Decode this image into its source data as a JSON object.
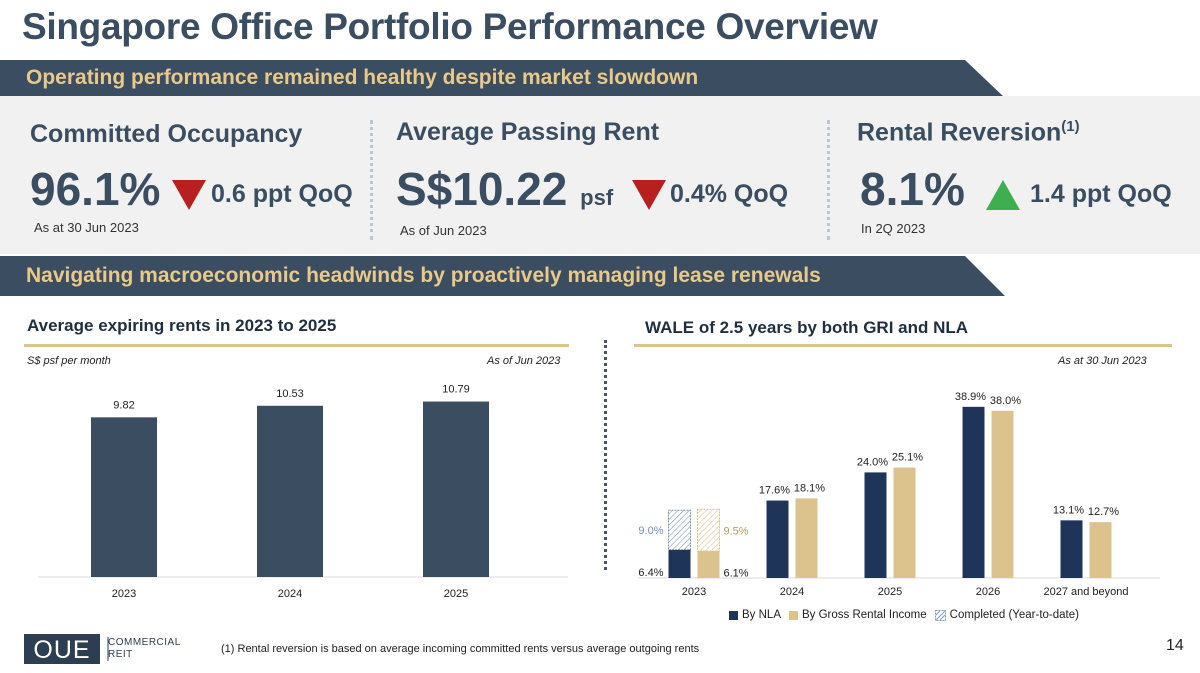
{
  "page": {
    "title": "Singapore Office Portfolio Performance Overview",
    "page_number": "14"
  },
  "banners": {
    "top": "Operating performance remained healthy despite market slowdown",
    "middle": "Navigating macroeconomic headwinds by proactively managing lease renewals"
  },
  "kpis": [
    {
      "label": "Committed Occupancy",
      "sup": "",
      "value": "96.1%",
      "unit": "",
      "change": "0.6 ppt QoQ",
      "direction": "down",
      "note": "As at 30 Jun 2023"
    },
    {
      "label": "Average Passing Rent",
      "sup": "",
      "value": "S$10.22",
      "unit": "psf",
      "change": "0.4% QoQ",
      "direction": "down",
      "note": "As of Jun 2023"
    },
    {
      "label": "Rental Reversion",
      "sup": "(1)",
      "value": "8.1%",
      "unit": "",
      "change": "1.4 ppt QoQ",
      "direction": "up",
      "note": "In 2Q 2023"
    }
  ],
  "colors": {
    "dark": "#3a4d61",
    "navy": "#1f3459",
    "gold": "#dcc38e",
    "down": "#b81f1f",
    "up": "#3fae4f",
    "banner_text": "#e8c98a"
  },
  "chart_data": [
    {
      "type": "bar",
      "title": "Average expiring rents in 2023 to 2025",
      "unit_label": "S$ psf per month",
      "as_of": "As of Jun 2023",
      "categories": [
        "2023",
        "2024",
        "2025"
      ],
      "values": [
        9.82,
        10.53,
        10.79
      ],
      "labels": [
        "9.82",
        "10.53",
        "10.79"
      ],
      "ylim": [
        0,
        12.3
      ],
      "grid": false
    },
    {
      "type": "bar",
      "title": "WALE of 2.5 years by both GRI and NLA",
      "as_of": "As at 30 Jun 2023",
      "categories": [
        "2023",
        "2024",
        "2025",
        "2026",
        "2027 and beyond"
      ],
      "series": [
        {
          "name": "By NLA",
          "values": [
            6.4,
            17.6,
            24.0,
            38.9,
            13.1
          ],
          "labels": [
            "6.4%",
            "17.6%",
            "24.0%",
            "38.9%",
            "13.1%"
          ],
          "completed": [
            9.0,
            null,
            null,
            null,
            null
          ],
          "completed_labels": [
            "9.0%",
            "",
            "",
            "",
            ""
          ]
        },
        {
          "name": "By Gross Rental Income",
          "values": [
            6.1,
            18.1,
            25.1,
            38.0,
            12.7
          ],
          "labels": [
            "6.1%",
            "18.1%",
            "25.1%",
            "38.0%",
            "12.7%"
          ],
          "completed": [
            9.5,
            null,
            null,
            null,
            null
          ],
          "completed_labels": [
            "9.5%",
            "",
            "",
            "",
            ""
          ]
        }
      ],
      "legend": [
        "By NLA",
        "By Gross Rental Income",
        "Completed (Year-to-date)"
      ],
      "legend_position": "bottom",
      "ylim": [
        0,
        40
      ],
      "grid": false
    }
  ],
  "footnote": "(1)   Rental reversion is based on average incoming committed rents versus average outgoing rents",
  "logo": {
    "mark": "OUE",
    "line1": "COMMERCIAL",
    "line2": "REIT"
  }
}
